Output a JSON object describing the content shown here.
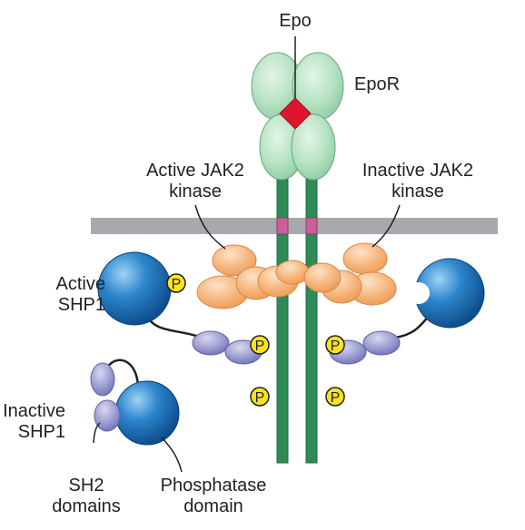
{
  "labels": {
    "epo": "Epo",
    "epor": "EpoR",
    "active_jak2": "Active JAK2\nkinase",
    "inactive_jak2": "Inactive JAK2\nkinase",
    "active_shp1": "Active\nSHP1",
    "inactive_shp1": "Inactive\nSHP1",
    "sh2_domains": "SH2\ndomains",
    "phosphatase_domain": "Phosphatase\ndomain",
    "phospho": "P"
  },
  "colors": {
    "receptor_green": "#a9dcb8",
    "chain_green": "#2e8b57",
    "epo_red": "#e0142c",
    "jak2_orange": "#f7b275",
    "shp1_blue": "#1f72b8",
    "sh2_purple": "#8c8ec8",
    "phospho_yellow": "#f7e320",
    "membrane_gray": "#a7a9ac",
    "pink_segment": "#c9609a"
  }
}
